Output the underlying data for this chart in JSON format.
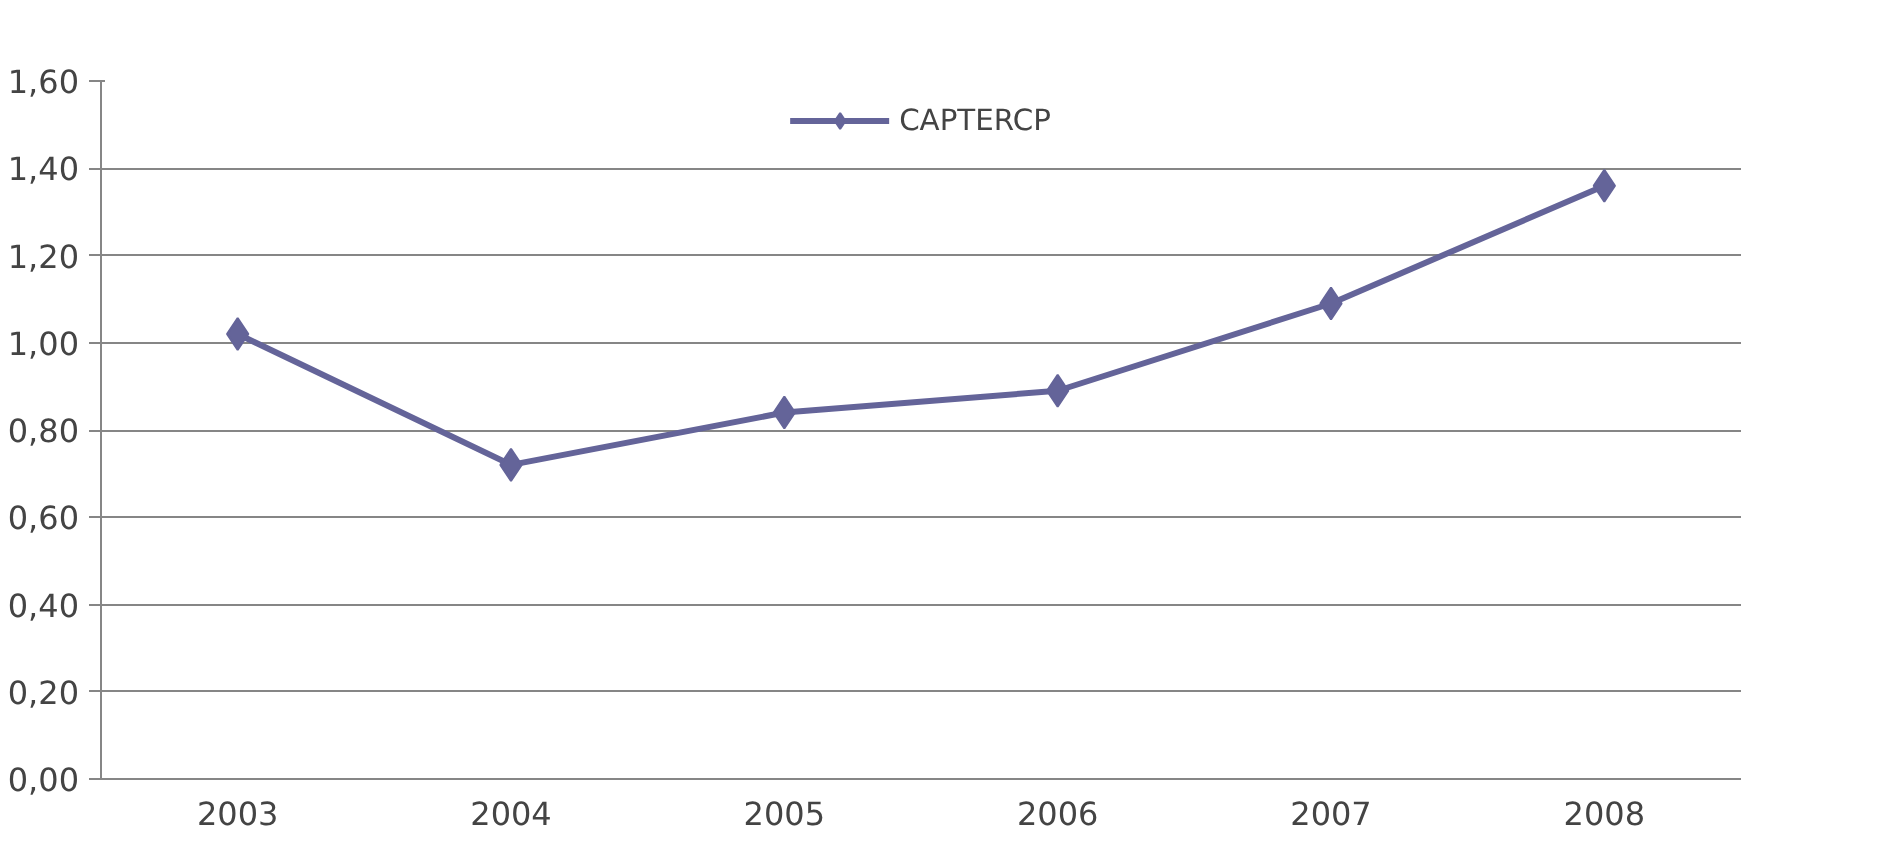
{
  "chart_data": {
    "type": "line",
    "categories": [
      "2003",
      "2004",
      "2005",
      "2006",
      "2007",
      "2008"
    ],
    "series": [
      {
        "name": "CAPTERCP",
        "color": "#646499",
        "values": [
          1.02,
          0.72,
          0.84,
          0.89,
          1.09,
          1.36
        ]
      }
    ],
    "ylim": [
      0,
      1.6
    ],
    "yticks": [
      {
        "value": 0,
        "label": "0,00"
      },
      {
        "value": 0.2,
        "label": "0,20"
      },
      {
        "value": 0.4,
        "label": "0,40"
      },
      {
        "value": 0.6,
        "label": "0,60"
      },
      {
        "value": 0.8,
        "label": "0,80"
      },
      {
        "value": 1.0,
        "label": "1,00"
      },
      {
        "value": 1.2,
        "label": "1,20"
      },
      {
        "value": 1.4,
        "label": "1,40"
      },
      {
        "value": 1.6,
        "label": "1,60"
      }
    ],
    "grid": "y",
    "legend": "top",
    "marker": "diamond",
    "line_style": "solid"
  }
}
